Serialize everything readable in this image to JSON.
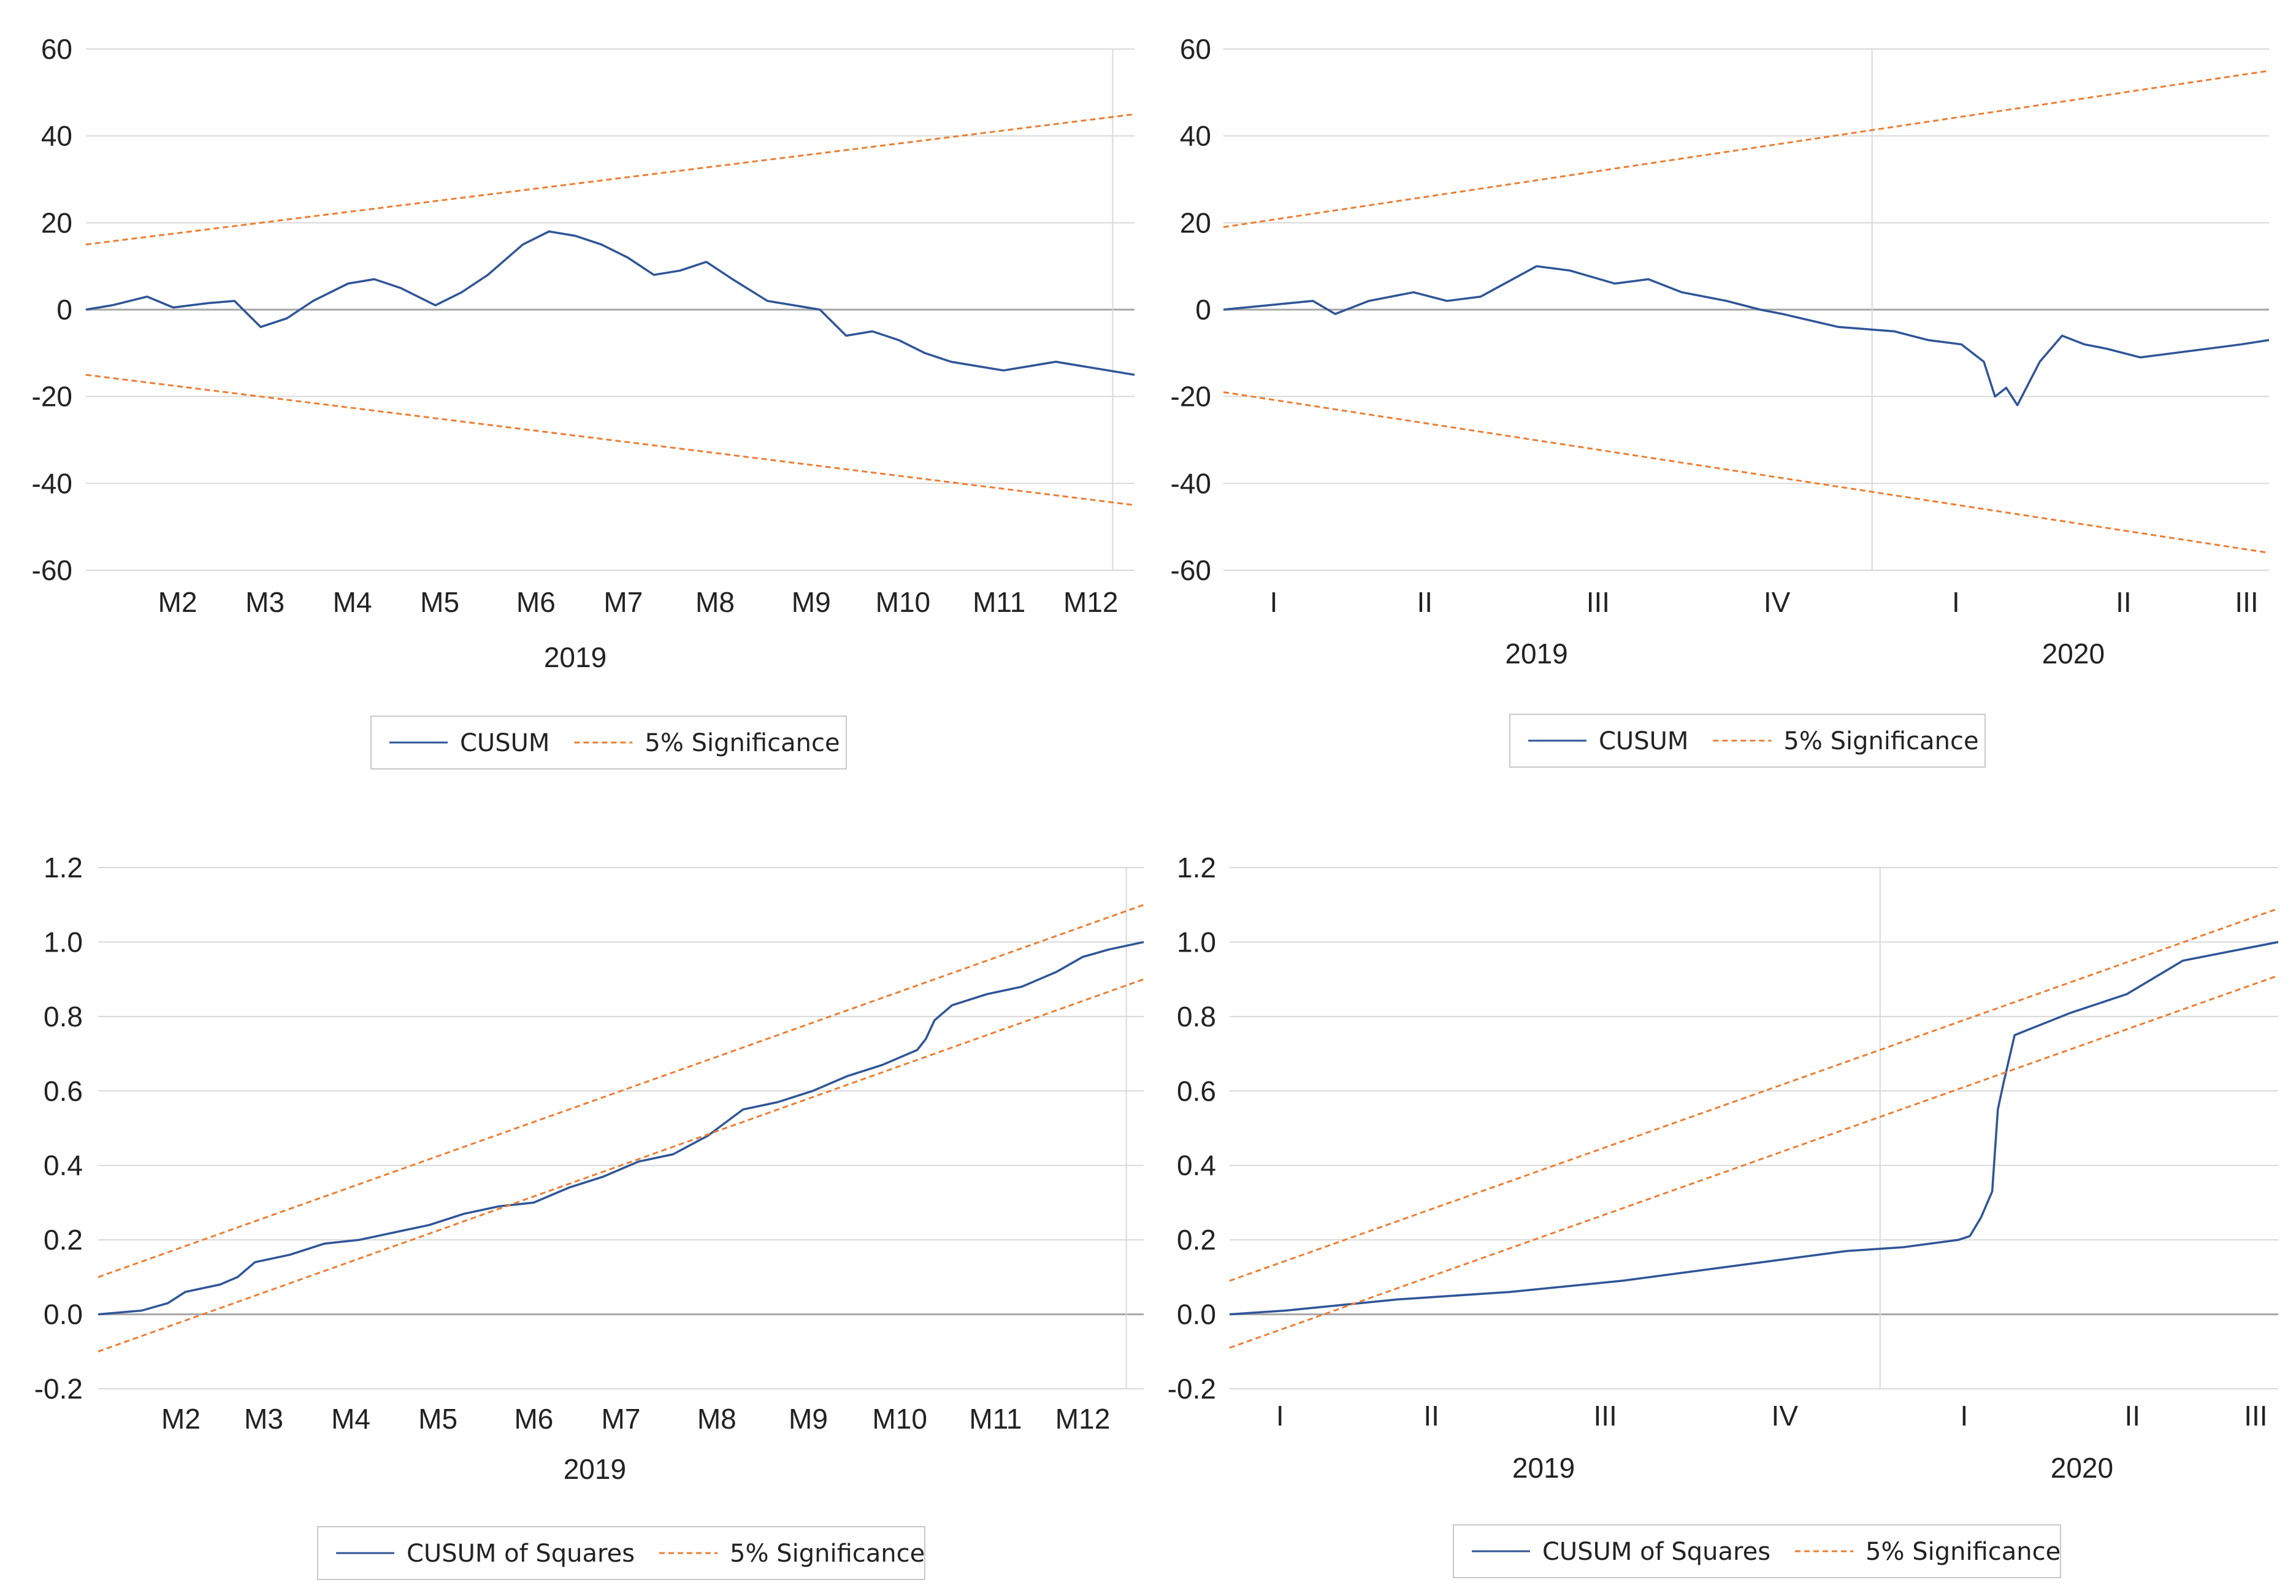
{
  "colors": {
    "cusum": "#2f5597",
    "band": "#ed7d31",
    "grid": "#d9d9d9",
    "zero": "#a6a6a6",
    "legend_border": "#c8c8c8"
  },
  "chart_data": [
    {
      "type": "line",
      "title": "",
      "ylim": [
        -60,
        60
      ],
      "yticks": [
        60,
        40,
        20,
        0,
        -20,
        -40,
        -60
      ],
      "ytick_labels": [
        "60",
        "40",
        "20",
        "0",
        "-20",
        "-40",
        "-60"
      ],
      "xlim": [
        0,
        12
      ],
      "xticks": [
        {
          "x": 1.05,
          "label": "M2"
        },
        {
          "x": 2.05,
          "label": "M3"
        },
        {
          "x": 3.05,
          "label": "M4"
        },
        {
          "x": 4.05,
          "label": "M5"
        },
        {
          "x": 5.15,
          "label": "M6"
        },
        {
          "x": 6.15,
          "label": "M7"
        },
        {
          "x": 7.2,
          "label": "M8"
        },
        {
          "x": 8.3,
          "label": "M9"
        },
        {
          "x": 9.35,
          "label": "M10"
        },
        {
          "x": 10.45,
          "label": "M11"
        },
        {
          "x": 11.5,
          "label": "M12"
        }
      ],
      "year_labels": [
        {
          "x": 5.6,
          "label": "2019"
        }
      ],
      "vlines": [
        11.75
      ],
      "grid": true,
      "series": [
        {
          "name": "CUSUM",
          "style": "solid",
          "x": [
            0,
            0.3,
            0.7,
            1.0,
            1.4,
            1.7,
            2.0,
            2.3,
            2.6,
            3.0,
            3.3,
            3.6,
            4.0,
            4.3,
            4.6,
            5.0,
            5.3,
            5.6,
            5.9,
            6.2,
            6.5,
            6.8,
            7.1,
            7.4,
            7.8,
            8.1,
            8.4,
            8.7,
            9.0,
            9.3,
            9.6,
            9.9,
            10.2,
            10.5,
            10.8,
            11.1,
            11.4,
            11.7,
            12.0
          ],
          "values": [
            0,
            1,
            3,
            0.5,
            1.5,
            2,
            -4,
            -2,
            2,
            6,
            7,
            5,
            1,
            4,
            8,
            15,
            18,
            17,
            15,
            12,
            8,
            9,
            11,
            7,
            2,
            1,
            0,
            -6,
            -5,
            -7,
            -10,
            -12,
            -13,
            -14,
            -13,
            -12,
            -13,
            -14,
            -15
          ]
        },
        {
          "name": "5% Significance",
          "style": "dashed",
          "x": [
            0,
            12
          ],
          "values": [
            15,
            45
          ]
        },
        {
          "name": "5% Significance",
          "style": "dashed",
          "x": [
            0,
            12
          ],
          "values": [
            -15,
            -45
          ]
        }
      ],
      "legend": [
        {
          "label": "CUSUM",
          "style": "solid"
        },
        {
          "label": "5% Significance",
          "style": "dashed"
        }
      ],
      "legend_position": "bottom"
    },
    {
      "type": "line",
      "title": "",
      "ylim": [
        -60,
        60
      ],
      "yticks": [
        60,
        40,
        20,
        0,
        -20,
        -40,
        -60
      ],
      "ytick_labels": [
        "60",
        "40",
        "20",
        "0",
        "-20",
        "-40",
        "-60"
      ],
      "xlim": [
        0,
        1.87
      ],
      "xticks": [
        {
          "x": 0.09,
          "label": "I"
        },
        {
          "x": 0.36,
          "label": "II"
        },
        {
          "x": 0.67,
          "label": "III"
        },
        {
          "x": 0.99,
          "label": "IV"
        },
        {
          "x": 1.31,
          "label": "I"
        },
        {
          "x": 1.61,
          "label": "II"
        },
        {
          "x": 1.83,
          "label": "III"
        }
      ],
      "year_labels": [
        {
          "x": 0.56,
          "label": "2019"
        },
        {
          "x": 1.52,
          "label": "2020"
        }
      ],
      "vlines": [
        1.16
      ],
      "grid": true,
      "series": [
        {
          "name": "CUSUM",
          "style": "solid",
          "x": [
            0,
            0.08,
            0.16,
            0.2,
            0.26,
            0.34,
            0.4,
            0.46,
            0.56,
            0.62,
            0.7,
            0.76,
            0.82,
            0.9,
            0.96,
            1.0,
            1.1,
            1.2,
            1.26,
            1.32,
            1.36,
            1.38,
            1.4,
            1.42,
            1.46,
            1.5,
            1.54,
            1.58,
            1.64,
            1.7,
            1.76,
            1.82,
            1.87
          ],
          "values": [
            0,
            1,
            2,
            -1,
            2,
            4,
            2,
            3,
            10,
            9,
            6,
            7,
            4,
            2,
            0,
            -1,
            -4,
            -5,
            -7,
            -8,
            -12,
            -20,
            -18,
            -22,
            -12,
            -6,
            -8,
            -9,
            -11,
            -10,
            -9,
            -8,
            -7
          ]
        },
        {
          "name": "5% Significance",
          "style": "dashed",
          "x": [
            0,
            1.87
          ],
          "values": [
            19,
            55
          ]
        },
        {
          "name": "5% Significance",
          "style": "dashed",
          "x": [
            0,
            1.87
          ],
          "values": [
            -19,
            -56
          ]
        }
      ],
      "legend": [
        {
          "label": "CUSUM",
          "style": "solid"
        },
        {
          "label": "5% Significance",
          "style": "dashed"
        }
      ],
      "legend_position": "bottom"
    },
    {
      "type": "line",
      "title": "",
      "ylim": [
        -0.2,
        1.2
      ],
      "yticks": [
        1.2,
        1.0,
        0.8,
        0.6,
        0.4,
        0.2,
        0.0,
        -0.2
      ],
      "ytick_labels": [
        "1.2",
        "1.0",
        "0.8",
        "0.6",
        "0.4",
        "0.2",
        "0.0",
        "-0.2"
      ],
      "xlim": [
        0,
        12
      ],
      "xticks": [
        {
          "x": 0.95,
          "label": "M2"
        },
        {
          "x": 1.9,
          "label": "M3"
        },
        {
          "x": 2.9,
          "label": "M4"
        },
        {
          "x": 3.9,
          "label": "M5"
        },
        {
          "x": 5.0,
          "label": "M6"
        },
        {
          "x": 6.0,
          "label": "M7"
        },
        {
          "x": 7.1,
          "label": "M8"
        },
        {
          "x": 8.15,
          "label": "M9"
        },
        {
          "x": 9.2,
          "label": "M10"
        },
        {
          "x": 10.3,
          "label": "M11"
        },
        {
          "x": 11.3,
          "label": "M12"
        }
      ],
      "year_labels": [
        {
          "x": 5.7,
          "label": "2019"
        }
      ],
      "vlines": [
        11.8
      ],
      "grid": true,
      "series": [
        {
          "name": "CUSUM of Squares",
          "style": "solid",
          "x": [
            0,
            0.5,
            0.8,
            1.0,
            1.4,
            1.6,
            1.8,
            2.2,
            2.6,
            3.0,
            3.4,
            3.8,
            4.2,
            4.6,
            5.0,
            5.4,
            5.8,
            6.2,
            6.6,
            7.0,
            7.4,
            7.8,
            8.2,
            8.6,
            9.0,
            9.4,
            9.5,
            9.6,
            9.8,
            10.2,
            10.6,
            11.0,
            11.3,
            11.6,
            12.0
          ],
          "values": [
            0,
            0.01,
            0.03,
            0.06,
            0.08,
            0.1,
            0.14,
            0.16,
            0.19,
            0.2,
            0.22,
            0.24,
            0.27,
            0.29,
            0.3,
            0.34,
            0.37,
            0.41,
            0.43,
            0.48,
            0.55,
            0.57,
            0.6,
            0.64,
            0.67,
            0.71,
            0.74,
            0.79,
            0.83,
            0.86,
            0.88,
            0.92,
            0.96,
            0.98,
            1.0
          ]
        },
        {
          "name": "5% Significance",
          "style": "dashed",
          "x": [
            0,
            12
          ],
          "values": [
            0.1,
            1.1
          ]
        },
        {
          "name": "5% Significance",
          "style": "dashed",
          "x": [
            0,
            12
          ],
          "values": [
            -0.1,
            0.9
          ]
        }
      ],
      "legend": [
        {
          "label": "CUSUM of Squares",
          "style": "solid"
        },
        {
          "label": "5% Significance",
          "style": "dashed"
        }
      ],
      "legend_position": "bottom"
    },
    {
      "type": "line",
      "title": "",
      "ylim": [
        -0.2,
        1.2
      ],
      "yticks": [
        1.2,
        1.0,
        0.8,
        0.6,
        0.4,
        0.2,
        0.0,
        -0.2
      ],
      "ytick_labels": [
        "1.2",
        "1.0",
        "0.8",
        "0.6",
        "0.4",
        "0.2",
        "0.0",
        "-0.2"
      ],
      "xlim": [
        0,
        1.87
      ],
      "xticks": [
        {
          "x": 0.09,
          "label": "I"
        },
        {
          "x": 0.36,
          "label": "II"
        },
        {
          "x": 0.67,
          "label": "III"
        },
        {
          "x": 0.99,
          "label": "IV"
        },
        {
          "x": 1.31,
          "label": "I"
        },
        {
          "x": 1.61,
          "label": "II"
        },
        {
          "x": 1.83,
          "label": "III"
        }
      ],
      "year_labels": [
        {
          "x": 0.56,
          "label": "2019"
        },
        {
          "x": 1.52,
          "label": "2020"
        }
      ],
      "vlines": [
        1.16
      ],
      "grid": true,
      "series": [
        {
          "name": "CUSUM of Squares",
          "style": "solid",
          "x": [
            0,
            0.1,
            0.3,
            0.5,
            0.7,
            0.9,
            1.0,
            1.1,
            1.2,
            1.3,
            1.32,
            1.34,
            1.36,
            1.37,
            1.38,
            1.4,
            1.5,
            1.6,
            1.7,
            1.87
          ],
          "values": [
            0,
            0.01,
            0.04,
            0.06,
            0.09,
            0.13,
            0.15,
            0.17,
            0.18,
            0.2,
            0.21,
            0.26,
            0.33,
            0.55,
            0.62,
            0.75,
            0.81,
            0.86,
            0.95,
            1.0
          ]
        },
        {
          "name": "5% Significance",
          "style": "dashed",
          "x": [
            0,
            1.87
          ],
          "values": [
            0.09,
            1.09
          ]
        },
        {
          "name": "5% Significance",
          "style": "dashed",
          "x": [
            0,
            1.87
          ],
          "values": [
            -0.09,
            0.91
          ]
        }
      ],
      "legend": [
        {
          "label": "CUSUM of Squares",
          "style": "solid"
        },
        {
          "label": "5% Significance",
          "style": "dashed"
        }
      ],
      "legend_position": "bottom"
    }
  ]
}
